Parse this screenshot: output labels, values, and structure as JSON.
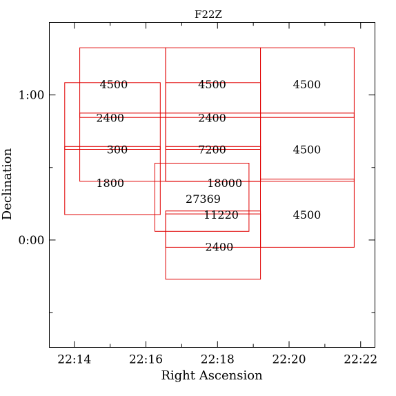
{
  "chart_data": {
    "type": "scatter",
    "title": "F22Z",
    "xlabel": "Right Ascension",
    "ylabel": "Declination",
    "x_unit": "minutes of right ascension past 22h",
    "y_unit": "degrees of declination",
    "xlim": [
      13.3,
      22.4
    ],
    "ylim": [
      -0.74,
      1.5
    ],
    "x_reversed": false,
    "grid": false,
    "x_ticks": [
      {
        "value": 14,
        "label": "22:14"
      },
      {
        "value": 16,
        "label": "22:16"
      },
      {
        "value": 18,
        "label": "22:18"
      },
      {
        "value": 20,
        "label": "22:20"
      },
      {
        "value": 22,
        "label": "22:22"
      }
    ],
    "y_ticks": [
      {
        "value": 1.0,
        "label": "1:00"
      },
      {
        "value": 0.0,
        "label": "0:00"
      }
    ],
    "field_color": "#e00000",
    "fields": [
      {
        "x0": 14.15,
        "x1": 16.55,
        "y0": 0.405,
        "y1": 1.325
      },
      {
        "x0": 13.73,
        "x1": 16.4,
        "y0": 0.175,
        "y1": 1.085
      },
      {
        "x0": 16.55,
        "x1": 19.2,
        "y0": 0.405,
        "y1": 1.325
      },
      {
        "x0": 16.55,
        "x1": 19.2,
        "y0": 0.625,
        "y1": 1.085
      },
      {
        "x0": 16.55,
        "x1": 19.2,
        "y0": 0.405,
        "y1": 0.645
      },
      {
        "x0": 16.55,
        "x1": 19.2,
        "y0": -0.05,
        "y1": 0.2
      },
      {
        "x0": 16.55,
        "x1": 19.2,
        "y0": -0.27,
        "y1": 0.18
      },
      {
        "x0": 16.25,
        "x1": 18.88,
        "y0": 0.06,
        "y1": 0.53
      },
      {
        "x0": 19.2,
        "x1": 21.82,
        "y0": 0.405,
        "y1": 1.325
      },
      {
        "x0": 19.2,
        "x1": 21.82,
        "y0": -0.05,
        "y1": 0.42
      },
      {
        "x0": 14.15,
        "x1": 21.82,
        "y0": 0.845,
        "y1": 0.875
      },
      {
        "x0": 13.73,
        "x1": 16.4,
        "y0": 0.625,
        "y1": 0.645
      }
    ],
    "exposures": [
      {
        "x": 15.1,
        "y": 1.07,
        "value": "4500"
      },
      {
        "x": 17.85,
        "y": 1.07,
        "value": "4500"
      },
      {
        "x": 20.5,
        "y": 1.07,
        "value": "4500"
      },
      {
        "x": 15.0,
        "y": 0.84,
        "value": "2400"
      },
      {
        "x": 17.85,
        "y": 0.84,
        "value": "2400"
      },
      {
        "x": 15.2,
        "y": 0.62,
        "value": "300"
      },
      {
        "x": 17.85,
        "y": 0.62,
        "value": "7200"
      },
      {
        "x": 20.5,
        "y": 0.62,
        "value": "4500"
      },
      {
        "x": 15.0,
        "y": 0.39,
        "value": "1800"
      },
      {
        "x": 18.2,
        "y": 0.39,
        "value": "18000"
      },
      {
        "x": 17.6,
        "y": 0.28,
        "value": "27369"
      },
      {
        "x": 18.1,
        "y": 0.17,
        "value": "11220"
      },
      {
        "x": 20.5,
        "y": 0.17,
        "value": "4500"
      },
      {
        "x": 18.05,
        "y": -0.05,
        "value": "2400"
      }
    ]
  }
}
